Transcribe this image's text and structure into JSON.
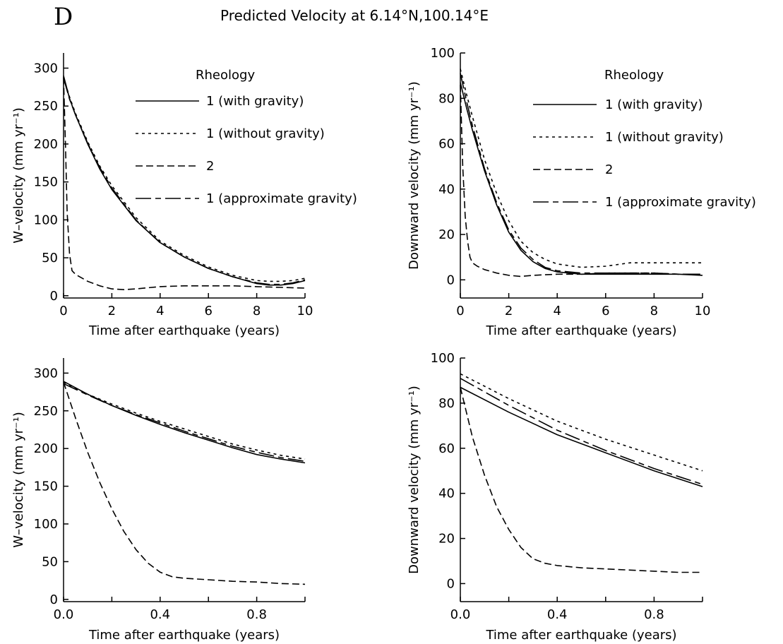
{
  "panel_letter": "D",
  "figure_title": "Predicted Velocity at 6.14°N,100.14°E",
  "chart_data": [
    {
      "type": "line",
      "xlabel": "Time after earthquake (years)",
      "ylabel": "W–velocity (mm yr⁻¹)",
      "xlim": [
        0,
        10
      ],
      "ylim": [
        -3,
        320
      ],
      "xticks": [
        0,
        2,
        4,
        6,
        8,
        10
      ],
      "xtick_labels": [
        "0",
        "2",
        "4",
        "6",
        "8",
        "10"
      ],
      "yticks": [
        0,
        50,
        100,
        150,
        200,
        250,
        300
      ],
      "ytick_labels": [
        "0",
        "50",
        "100",
        "150",
        "200",
        "250",
        "300"
      ],
      "legend_title": "Rheology",
      "legend_position": "top-right",
      "series": [
        {
          "name": "1 (with gravity)",
          "dash": "solid",
          "x": [
            0,
            0.25,
            0.5,
            1,
            1.5,
            2,
            3,
            4,
            5,
            6,
            7,
            8,
            8.5,
            9,
            9.5,
            10
          ],
          "y": [
            290,
            260,
            238,
            200,
            167,
            140,
            99,
            70,
            51,
            36,
            25,
            16,
            14,
            14,
            16,
            20
          ]
        },
        {
          "name": "1 (without gravity)",
          "dash": "short",
          "x": [
            0,
            0.25,
            0.5,
            1,
            1.5,
            2,
            3,
            4,
            5,
            6,
            7,
            8,
            8.5,
            9,
            9.5,
            10
          ],
          "y": [
            288,
            262,
            240,
            203,
            171,
            145,
            103,
            72,
            53,
            38,
            27,
            20,
            19,
            19,
            20,
            23
          ]
        },
        {
          "name": "2",
          "dash": "medium",
          "x": [
            0,
            0.08,
            0.15,
            0.25,
            0.35,
            0.5,
            1,
            1.5,
            2,
            2.5,
            3,
            4,
            5,
            6,
            7,
            8,
            9,
            10
          ],
          "y": [
            288,
            200,
            110,
            55,
            33,
            28,
            19,
            13,
            9,
            8,
            9,
            12,
            13,
            13,
            13,
            12,
            11,
            10
          ]
        },
        {
          "name": "1 (approximate gravity)",
          "dash": "long",
          "x": [
            0,
            0.25,
            0.5,
            1,
            1.5,
            2,
            3,
            4,
            5,
            6,
            7,
            8,
            8.5,
            9,
            9.5,
            10
          ],
          "y": [
            287,
            259,
            238,
            201,
            169,
            142,
            100,
            70,
            51,
            36,
            25,
            17,
            15,
            15,
            17,
            21
          ]
        }
      ]
    },
    {
      "type": "line",
      "xlabel": "Time after earthquake (years)",
      "ylabel": "Downward velocity (mm yr⁻¹)",
      "xlim": [
        0,
        10
      ],
      "ylim": [
        -8,
        100
      ],
      "xticks": [
        0,
        2,
        4,
        6,
        8,
        10
      ],
      "xtick_labels": [
        "0",
        "2",
        "4",
        "6",
        "8",
        "10"
      ],
      "yticks": [
        0,
        20,
        40,
        60,
        80,
        100
      ],
      "ytick_labels": [
        "0",
        "20",
        "40",
        "60",
        "80",
        "100"
      ],
      "legend_title": "Rheology",
      "legend_position": "top-right",
      "series": [
        {
          "name": "1 (with gravity)",
          "dash": "solid",
          "x": [
            0,
            0.25,
            0.5,
            1,
            1.5,
            2,
            2.5,
            3,
            3.5,
            4,
            5,
            6,
            7,
            8,
            9,
            10
          ],
          "y": [
            87,
            76,
            66,
            48,
            33,
            21,
            13,
            8,
            5,
            3.5,
            2.5,
            2.5,
            2.5,
            2.5,
            2.5,
            2
          ]
        },
        {
          "name": "1 (without gravity)",
          "dash": "short",
          "x": [
            0,
            0.25,
            0.5,
            1,
            1.5,
            2,
            2.5,
            3,
            3.5,
            4,
            5,
            6,
            7,
            8,
            9,
            10
          ],
          "y": [
            93,
            82,
            72,
            53,
            38,
            26,
            17,
            12,
            9,
            7,
            5.5,
            6,
            7.5,
            7.5,
            7.5,
            7.5
          ]
        },
        {
          "name": "2",
          "dash": "medium",
          "x": [
            0,
            0.1,
            0.2,
            0.3,
            0.4,
            0.5,
            0.7,
            1,
            1.5,
            2,
            2.5,
            3,
            4,
            5,
            6,
            7,
            8,
            9,
            10
          ],
          "y": [
            86,
            50,
            28,
            17,
            10,
            7.5,
            6,
            4.5,
            3,
            2,
            1.5,
            2,
            2.5,
            2.5,
            3,
            3,
            3,
            2.5,
            2.5
          ]
        },
        {
          "name": "1 (approximate gravity)",
          "dash": "long",
          "x": [
            0,
            0.25,
            0.5,
            1,
            1.5,
            2,
            2.5,
            3,
            3.5,
            4,
            5,
            6,
            7,
            8,
            9,
            10
          ],
          "y": [
            91,
            79,
            68,
            49,
            34,
            22,
            14,
            9,
            5.5,
            4,
            3,
            3,
            3,
            3,
            2.5,
            2.5
          ]
        }
      ]
    },
    {
      "type": "line",
      "xlabel": "Time after earthquake (years)",
      "ylabel": "W–velocity (mm yr⁻¹)",
      "xlim": [
        0,
        1
      ],
      "ylim": [
        -3,
        320
      ],
      "xticks": [
        0,
        0.2,
        0.4,
        0.6,
        0.8,
        1.0
      ],
      "xtick_labels": [
        "0.0",
        "",
        "0.4",
        "",
        "0.8",
        ""
      ],
      "yticks": [
        0,
        50,
        100,
        150,
        200,
        250,
        300
      ],
      "ytick_labels": [
        "0",
        "50",
        "100",
        "150",
        "200",
        "250",
        "300"
      ],
      "series": [
        {
          "name": "1 (with gravity)",
          "dash": "solid",
          "x": [
            0,
            0.1,
            0.2,
            0.3,
            0.4,
            0.5,
            0.6,
            0.7,
            0.8,
            0.9,
            1.0
          ],
          "y": [
            289,
            272,
            257,
            244,
            232,
            221,
            211,
            201,
            192,
            186,
            181
          ]
        },
        {
          "name": "1 (without gravity)",
          "dash": "short",
          "x": [
            0,
            0.1,
            0.2,
            0.3,
            0.4,
            0.5,
            0.6,
            0.7,
            0.8,
            0.9,
            1.0
          ],
          "y": [
            288,
            272,
            259,
            247,
            236,
            226,
            216,
            206,
            198,
            191,
            186
          ]
        },
        {
          "name": "2",
          "dash": "medium",
          "x": [
            0,
            0.05,
            0.1,
            0.15,
            0.2,
            0.25,
            0.3,
            0.35,
            0.4,
            0.45,
            0.5,
            0.6,
            0.7,
            0.8,
            0.9,
            1.0
          ],
          "y": [
            288,
            240,
            195,
            155,
            120,
            90,
            66,
            48,
            36,
            30,
            28,
            26,
            24,
            23,
            21,
            20
          ]
        },
        {
          "name": "1 (approximate gravity)",
          "dash": "long",
          "x": [
            0,
            0.1,
            0.2,
            0.3,
            0.4,
            0.5,
            0.6,
            0.7,
            0.8,
            0.9,
            1.0
          ],
          "y": [
            286,
            271,
            257,
            245,
            234,
            223,
            213,
            203,
            195,
            188,
            183
          ]
        }
      ]
    },
    {
      "type": "line",
      "xlabel": "Time after earthquake (years)",
      "ylabel": "Downward velocity (mm yr⁻¹)",
      "xlim": [
        0,
        1
      ],
      "ylim": [
        -8,
        100
      ],
      "xticks": [
        0,
        0.2,
        0.4,
        0.6,
        0.8,
        1.0
      ],
      "xtick_labels": [
        "0.0",
        "",
        "0.4",
        "",
        "0.8",
        ""
      ],
      "yticks": [
        0,
        20,
        40,
        60,
        80,
        100
      ],
      "ytick_labels": [
        "0",
        "20",
        "40",
        "60",
        "80",
        "100"
      ],
      "series": [
        {
          "name": "1 (with gravity)",
          "dash": "solid",
          "x": [
            0,
            0.2,
            0.4,
            0.6,
            0.8,
            1.0
          ],
          "y": [
            87,
            76,
            66,
            58,
            50,
            43
          ]
        },
        {
          "name": "1 (without gravity)",
          "dash": "short",
          "x": [
            0,
            0.2,
            0.4,
            0.6,
            0.8,
            1.0
          ],
          "y": [
            93,
            82,
            72,
            64,
            57,
            50
          ]
        },
        {
          "name": "2",
          "dash": "medium",
          "x": [
            0,
            0.05,
            0.1,
            0.15,
            0.2,
            0.25,
            0.3,
            0.35,
            0.4,
            0.5,
            0.6,
            0.7,
            0.8,
            0.9,
            1.0
          ],
          "y": [
            87,
            65,
            48,
            34,
            24,
            16,
            11,
            9,
            8,
            7,
            6.5,
            6,
            5.5,
            5,
            5
          ]
        },
        {
          "name": "1 (approximate gravity)",
          "dash": "long",
          "x": [
            0,
            0.2,
            0.4,
            0.6,
            0.8,
            1.0
          ],
          "y": [
            91,
            79,
            68,
            59,
            51,
            44
          ]
        }
      ]
    }
  ]
}
